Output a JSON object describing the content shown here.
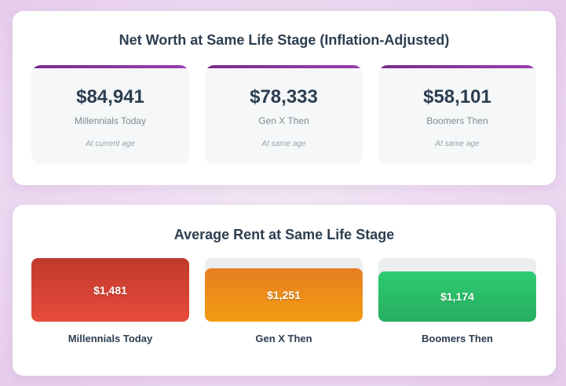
{
  "net_worth": {
    "title": "Net Worth at Same Life Stage (Inflation-Adjusted)",
    "cards": [
      {
        "value": "$84,941",
        "label": "Millennials Today",
        "note": "At current age"
      },
      {
        "value": "$78,333",
        "label": "Gen X Then",
        "note": "At same age"
      },
      {
        "value": "$58,101",
        "label": "Boomers Then",
        "note": "At same age"
      }
    ],
    "accent_color": "#8e3aa3"
  },
  "rent": {
    "title": "Average Rent at Same Life Stage",
    "bars": [
      {
        "value_text": "$1,481",
        "value": 1481,
        "label": "Millennials Today",
        "color": "#e74c3c"
      },
      {
        "value_text": "$1,251",
        "value": 1251,
        "label": "Gen X Then",
        "color": "#f39c12"
      },
      {
        "value_text": "$1,174",
        "value": 1174,
        "label": "Boomers Then",
        "color": "#2ecc71"
      }
    ]
  }
}
